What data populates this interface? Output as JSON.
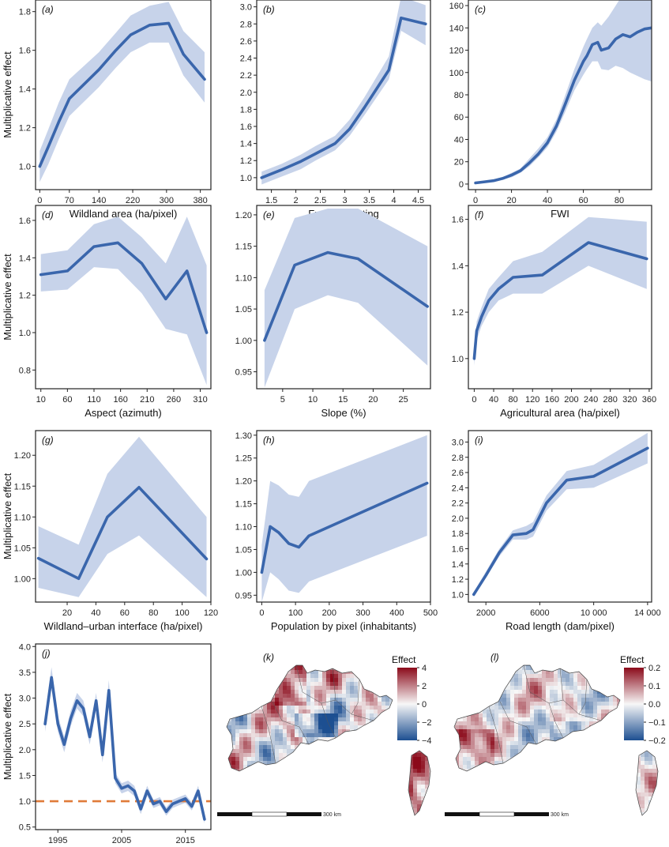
{
  "colors": {
    "line": "#3a66ac",
    "band": "#c7d3ea",
    "reference_line": "#e07b39",
    "map_low": "#1d4f91",
    "map_mid": "#f7f7f7",
    "map_high": "#8b0a1a"
  },
  "chart_data": [
    {
      "id": "a",
      "panel_label": "(a)",
      "type": "line",
      "xlabel": "Wildland area (ha/pixel)",
      "ylabel": "Multiplicative effect",
      "xlim": [
        -10,
        405
      ],
      "ylim": [
        0.88,
        1.86
      ],
      "xticks": [
        0,
        70,
        140,
        220,
        300,
        380
      ],
      "xticklabels": [
        "0",
        "70",
        "140",
        "220",
        "300",
        "380"
      ],
      "yticks": [
        1.0,
        1.2,
        1.4,
        1.6,
        1.8
      ],
      "yticklabels": [
        "1.0",
        "1.2",
        "1.4",
        "1.6",
        "1.8"
      ],
      "x": [
        0,
        20,
        45,
        70,
        140,
        180,
        215,
        260,
        305,
        340,
        390
      ],
      "y": [
        1.0,
        1.1,
        1.23,
        1.35,
        1.5,
        1.6,
        1.68,
        1.73,
        1.74,
        1.58,
        1.45
      ],
      "lower": [
        0.92,
        1.01,
        1.14,
        1.26,
        1.41,
        1.51,
        1.59,
        1.64,
        1.64,
        1.47,
        1.33
      ],
      "upper": [
        1.08,
        1.19,
        1.33,
        1.45,
        1.59,
        1.69,
        1.78,
        1.83,
        1.85,
        1.7,
        1.59
      ]
    },
    {
      "id": "b",
      "panel_label": "(b)",
      "type": "line",
      "xlabel": "Fuel type rating",
      "ylabel": "",
      "xlim": [
        1.2,
        4.75
      ],
      "ylim": [
        0.86,
        3.08
      ],
      "xticks": [
        1.5,
        2,
        2.5,
        3,
        3.5,
        4,
        4.5
      ],
      "xticklabels": [
        "1.5",
        "2",
        "2.5",
        "3",
        "3.5",
        "4",
        "4.5"
      ],
      "yticks": [
        1.0,
        1.2,
        1.4,
        1.6,
        1.8,
        2.0,
        2.2,
        2.4,
        2.6,
        2.8,
        3.0
      ],
      "yticklabels": [
        "1.0",
        "1.2",
        "1.4",
        "1.6",
        "1.8",
        "2.0",
        "2.2",
        "2.4",
        "2.6",
        "2.8",
        "3.0"
      ],
      "x": [
        1.3,
        1.7,
        2.1,
        2.4,
        2.8,
        3.1,
        3.4,
        3.9,
        4.15,
        4.65
      ],
      "y": [
        1.0,
        1.09,
        1.19,
        1.28,
        1.4,
        1.57,
        1.82,
        2.26,
        2.87,
        2.8
      ],
      "lower": [
        0.92,
        1.01,
        1.1,
        1.2,
        1.32,
        1.49,
        1.73,
        2.15,
        2.72,
        2.55
      ],
      "upper": [
        1.07,
        1.16,
        1.27,
        1.37,
        1.49,
        1.68,
        1.94,
        2.42,
        3.12,
        3.02
      ]
    },
    {
      "id": "c",
      "panel_label": "(c)",
      "type": "line",
      "xlabel": "FWI",
      "ylabel": "",
      "xlim": [
        -4,
        98
      ],
      "ylim": [
        -5,
        165
      ],
      "xticks": [
        0,
        20,
        40,
        60,
        80
      ],
      "xticklabels": [
        "0",
        "20",
        "40",
        "60",
        "80"
      ],
      "yticks": [
        0,
        20,
        40,
        60,
        80,
        100,
        120,
        140,
        160
      ],
      "yticklabels": [
        "0",
        "20",
        "40",
        "60",
        "80",
        "100",
        "120",
        "140",
        "160"
      ],
      "x": [
        0,
        5,
        10,
        15,
        20,
        25,
        30,
        35,
        40,
        45,
        50,
        55,
        60,
        62,
        65,
        68,
        70,
        74,
        78,
        82,
        86,
        90,
        94,
        98
      ],
      "y": [
        1,
        2,
        3,
        5,
        8,
        12,
        19,
        27,
        37,
        52,
        72,
        93,
        110,
        115,
        125,
        127,
        120,
        122,
        130,
        134,
        132,
        136,
        139,
        140
      ],
      "lower": [
        0.5,
        1.5,
        2.5,
        4,
        6,
        10,
        16,
        24,
        33,
        47,
        65,
        84,
        98,
        103,
        110,
        110,
        103,
        102,
        106,
        104,
        100,
        97,
        94,
        92
      ],
      "upper": [
        1.5,
        3,
        4,
        6,
        10,
        14,
        23,
        32,
        42,
        58,
        80,
        103,
        123,
        130,
        140,
        145,
        142,
        150,
        160,
        170,
        172,
        174,
        176,
        178
      ]
    },
    {
      "id": "d",
      "panel_label": "(d)",
      "type": "line",
      "xlabel": "Aspect (azimuth)",
      "ylabel": "Multiplicative effect",
      "xlim": [
        0,
        330
      ],
      "ylim": [
        0.7,
        1.68
      ],
      "xticks": [
        10,
        60,
        110,
        160,
        210,
        260,
        310
      ],
      "xticklabels": [
        "10",
        "60",
        "110",
        "160",
        "210",
        "260",
        "310"
      ],
      "yticks": [
        0.8,
        1.0,
        1.2,
        1.4,
        1.6
      ],
      "yticklabels": [
        "0.8",
        "1.0",
        "1.2",
        "1.4",
        "1.6"
      ],
      "x": [
        10,
        60,
        110,
        155,
        200,
        245,
        285,
        322
      ],
      "y": [
        1.31,
        1.33,
        1.46,
        1.48,
        1.37,
        1.18,
        1.33,
        1.0
      ],
      "lower": [
        1.22,
        1.23,
        1.35,
        1.34,
        1.21,
        1.02,
        0.99,
        0.72
      ],
      "upper": [
        1.42,
        1.44,
        1.58,
        1.62,
        1.51,
        1.37,
        1.62,
        1.36
      ]
    },
    {
      "id": "e",
      "panel_label": "(e)",
      "type": "line",
      "xlabel": "Slope (%)",
      "ylabel": "",
      "xlim": [
        0.7,
        29.5
      ],
      "ylim": [
        0.923,
        1.215
      ],
      "xticks": [
        5,
        10,
        15,
        20,
        25
      ],
      "xticklabels": [
        "5",
        "10",
        "15",
        "20",
        "25"
      ],
      "yticks": [
        0.95,
        1.0,
        1.05,
        1.1,
        1.15,
        1.2
      ],
      "yticklabels": [
        "0.95",
        "1.00",
        "1.05",
        "1.10",
        "1.15",
        "1.20"
      ],
      "x": [
        2,
        7,
        12.5,
        17.5,
        29
      ],
      "y": [
        1.0,
        1.12,
        1.14,
        1.13,
        1.054
      ],
      "lower": [
        0.925,
        1.05,
        1.072,
        1.06,
        0.96
      ],
      "upper": [
        1.08,
        1.195,
        1.21,
        1.21,
        1.15
      ]
    },
    {
      "id": "f",
      "panel_label": "(f)",
      "type": "line",
      "xlabel": "Agricultural area (ha/pixel)",
      "ylabel": "",
      "xlim": [
        -12,
        365
      ],
      "ylim": [
        0.87,
        1.66
      ],
      "xticks": [
        0,
        40,
        80,
        120,
        160,
        200,
        240,
        280,
        320,
        360
      ],
      "xticklabels": [
        "0",
        "40",
        "",
        "120",
        "160",
        "200",
        "240",
        "280",
        "",
        "360"
      ],
      "xticklabels_display": [
        "0",
        "40",
        "80",
        "120",
        "160",
        "200",
        "240",
        "280",
        "320",
        "360"
      ],
      "yticks": [
        1.0,
        1.2,
        1.4,
        1.6
      ],
      "yticklabels": [
        "1.0",
        "1.2",
        "1.4",
        "1.6"
      ],
      "x": [
        0,
        5,
        15,
        30,
        50,
        80,
        140,
        235,
        355
      ],
      "y": [
        1.0,
        1.12,
        1.18,
        1.25,
        1.3,
        1.35,
        1.36,
        1.5,
        1.43
      ],
      "lower": [
        0.97,
        1.08,
        1.14,
        1.2,
        1.25,
        1.28,
        1.28,
        1.4,
        1.3
      ],
      "upper": [
        1.03,
        1.16,
        1.22,
        1.3,
        1.35,
        1.42,
        1.46,
        1.61,
        1.59
      ]
    },
    {
      "id": "g",
      "panel_label": "(g)",
      "type": "line",
      "xlabel": "Wildland–urban interface (ha/pixel)",
      "ylabel": "Multiplicative effect",
      "xlim": [
        -2,
        120
      ],
      "ylim": [
        0.962,
        1.24
      ],
      "xticks": [
        20,
        40,
        60,
        80,
        100,
        120
      ],
      "xticklabels": [
        "20",
        "40",
        "60",
        "80",
        "100",
        "120"
      ],
      "yticks": [
        1.0,
        1.05,
        1.1,
        1.15,
        1.2
      ],
      "yticklabels": [
        "1.00",
        "1.05",
        "1.10",
        "1.15",
        "1.20"
      ],
      "x": [
        0,
        28,
        48,
        70,
        117
      ],
      "y": [
        1.033,
        1.0,
        1.1,
        1.148,
        1.032
      ],
      "lower": [
        0.985,
        0.97,
        1.04,
        1.07,
        0.97
      ],
      "upper": [
        1.085,
        1.055,
        1.17,
        1.23,
        1.1
      ]
    },
    {
      "id": "h",
      "panel_label": "(h)",
      "type": "line",
      "xlabel": "Population by pixel (inhabitants)",
      "ylabel": "",
      "xlim": [
        -15,
        500
      ],
      "ylim": [
        0.935,
        1.31
      ],
      "xticks": [
        0,
        100,
        200,
        300,
        400,
        500
      ],
      "xticklabels": [
        "0",
        "100",
        "200",
        "300",
        "400",
        "500"
      ],
      "yticks": [
        0.95,
        1.0,
        1.05,
        1.1,
        1.15,
        1.2,
        1.25,
        1.3
      ],
      "yticklabels": [
        "0.95",
        "1.00",
        "1.05",
        "1.10",
        "1.15",
        "1.20",
        "1.25",
        "1.30"
      ],
      "x": [
        0,
        25,
        50,
        80,
        110,
        140,
        490
      ],
      "y": [
        1.0,
        1.1,
        1.087,
        1.063,
        1.055,
        1.08,
        1.195
      ],
      "lower": [
        0.935,
        1.0,
        0.985,
        0.96,
        0.955,
        0.98,
        1.08
      ],
      "upper": [
        1.06,
        1.2,
        1.19,
        1.17,
        1.165,
        1.2,
        1.3
      ]
    },
    {
      "id": "i",
      "panel_label": "(i)",
      "type": "line",
      "xlabel": "Road length (dam/pixel)",
      "ylabel": "",
      "xlim": [
        700,
        14300
      ],
      "ylim": [
        0.9,
        3.15
      ],
      "xticks": [
        2000,
        6000,
        10000,
        14000
      ],
      "xticklabels": [
        "2000",
        "6000",
        "10 000",
        "14 000"
      ],
      "yticks": [
        1.0,
        1.2,
        1.4,
        1.6,
        1.8,
        2.0,
        2.2,
        2.4,
        2.6,
        2.8,
        3.0
      ],
      "yticklabels": [
        "1.0",
        "1.2",
        "1.4",
        "1.6",
        "1.8",
        "2.0",
        "2.2",
        "2.4",
        "2.6",
        "2.8",
        "3.0"
      ],
      "x": [
        1100,
        2000,
        3000,
        4000,
        5000,
        5500,
        6500,
        8000,
        10000,
        14000
      ],
      "y": [
        1.0,
        1.25,
        1.55,
        1.78,
        1.8,
        1.85,
        2.2,
        2.5,
        2.55,
        2.92
      ],
      "lower": [
        0.97,
        1.22,
        1.5,
        1.72,
        1.72,
        1.76,
        2.1,
        2.38,
        2.4,
        2.72
      ],
      "upper": [
        1.03,
        1.3,
        1.6,
        1.84,
        1.9,
        1.95,
        2.3,
        2.62,
        2.7,
        3.12
      ]
    },
    {
      "id": "j",
      "panel_label": "(j)",
      "type": "line",
      "xlabel": "Year",
      "ylabel": "Multiplicative effect",
      "xlim": [
        1991.5,
        2019
      ],
      "ylim": [
        0.45,
        4.05
      ],
      "xticks": [
        1995,
        2005,
        2015
      ],
      "xticklabels": [
        "1995",
        "2005",
        "2015"
      ],
      "yticks": [
        0.5,
        1.0,
        1.5,
        2.0,
        2.5,
        3.0,
        3.5,
        4.0
      ],
      "yticklabels": [
        "0.5",
        "1.0",
        "1.5",
        "2.0",
        "2.5",
        "3.0",
        "3.5",
        "4.0"
      ],
      "reference_y": 1.0,
      "x": [
        1993,
        1994,
        1995,
        1996,
        1997,
        1998,
        1999,
        2000,
        2001,
        2002,
        2003,
        2004,
        2005,
        2006,
        2007,
        2008,
        2009,
        2010,
        2011,
        2012,
        2013,
        2014,
        2015,
        2016,
        2017,
        2018
      ],
      "y": [
        2.5,
        3.4,
        2.5,
        2.1,
        2.6,
        2.95,
        2.8,
        2.25,
        2.95,
        1.9,
        3.15,
        1.45,
        1.25,
        1.3,
        1.2,
        0.85,
        1.2,
        0.95,
        1.0,
        0.8,
        0.95,
        1.0,
        1.05,
        0.9,
        1.2,
        0.65
      ],
      "lower": [
        2.35,
        3.2,
        2.35,
        1.95,
        2.45,
        2.8,
        2.65,
        2.1,
        2.8,
        1.75,
        2.95,
        1.35,
        1.15,
        1.2,
        1.1,
        0.75,
        1.1,
        0.87,
        0.92,
        0.72,
        0.87,
        0.92,
        0.97,
        0.82,
        1.1,
        0.57
      ],
      "upper": [
        2.65,
        3.6,
        2.65,
        2.25,
        2.75,
        3.1,
        2.95,
        2.4,
        3.1,
        2.05,
        3.35,
        1.55,
        1.35,
        1.4,
        1.3,
        0.95,
        1.3,
        1.03,
        1.08,
        0.88,
        1.03,
        1.08,
        1.13,
        0.98,
        1.3,
        0.73
      ]
    },
    {
      "id": "k",
      "panel_label": "(k)",
      "type": "heatmap",
      "colorbar_title": "Effect",
      "colorbar_ticks": [
        4,
        2,
        0,
        -2,
        -4
      ],
      "colorbar_ticklabels": [
        "4",
        "2",
        "0",
        "−2",
        "−4"
      ],
      "clim": [
        -4,
        4
      ],
      "scale_bar_label": "300 km"
    },
    {
      "id": "l",
      "panel_label": "(l)",
      "type": "heatmap",
      "colorbar_title": "Effect",
      "colorbar_ticks": [
        0.2,
        0.1,
        0.0,
        -0.1,
        -0.2
      ],
      "colorbar_ticklabels": [
        "0.2",
        "0.1",
        "0.0",
        "−0.1",
        "−0.2"
      ],
      "clim": [
        -0.2,
        0.2
      ],
      "scale_bar_label": "300 km"
    }
  ]
}
